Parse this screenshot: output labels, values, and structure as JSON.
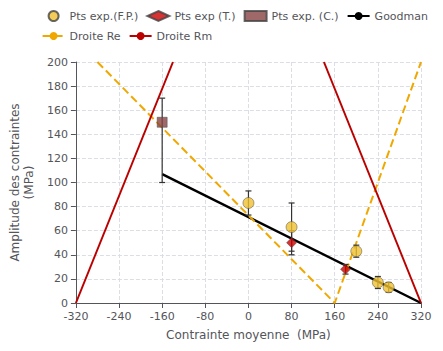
{
  "chart_data": {
    "type": "scatter",
    "xlabel": "Contrainte moyenne  (MPa)",
    "ylabel": "Amplitude des contraintes\n(MPa)",
    "xlim": [
      -320,
      320
    ],
    "ylim": [
      0,
      200
    ],
    "xticks": [
      -320,
      -240,
      -160,
      -80,
      0,
      80,
      160,
      240,
      320
    ],
    "yticks": [
      0,
      20,
      40,
      60,
      80,
      100,
      120,
      140,
      160,
      180,
      200
    ],
    "grid": true,
    "legend": "upper right",
    "series": [
      {
        "name": "Pts exp.(F.P.)",
        "type": "scatter",
        "marker": "circle",
        "color": "#f0c030",
        "x": [
          0,
          80,
          200,
          240,
          260
        ],
        "values": [
          83,
          63,
          43,
          17,
          13
        ],
        "yerr": [
          10,
          20,
          5,
          5,
          4
        ]
      },
      {
        "name": "Pts exp (T.)",
        "type": "scatter",
        "marker": "diamond",
        "color": "#cc0000",
        "x": [
          80,
          180
        ],
        "values": [
          50,
          28
        ],
        "yerr": [
          10,
          4
        ]
      },
      {
        "name": "Pts exp. (C.)",
        "type": "scatter",
        "marker": "square",
        "color": "#884444",
        "x": [
          -160
        ],
        "values": [
          150
        ],
        "yerr_low": [
          50
        ],
        "yerr_high": [
          20
        ]
      },
      {
        "name": "Goodman",
        "type": "line",
        "line_style": "solid",
        "color": "#000000",
        "x": [
          -160,
          320
        ],
        "values": [
          107,
          0
        ]
      },
      {
        "name": "Droite Re",
        "type": "line",
        "line_style": "dashed",
        "color": "#f0a800",
        "x": [
          -280,
          160,
          320
        ],
        "values": [
          200,
          0,
          200
        ]
      },
      {
        "name": "Droite Rm",
        "type": "line",
        "line_style": "solid",
        "color": "#bb0000",
        "x": [
          -320,
          -140
        ],
        "values": [
          0,
          200
        ]
      },
      {
        "name": "Droite Rm",
        "type": "line",
        "line_style": "solid",
        "color": "#bb0000",
        "x": [
          140,
          320
        ],
        "values": [
          200,
          0
        ]
      }
    ]
  }
}
